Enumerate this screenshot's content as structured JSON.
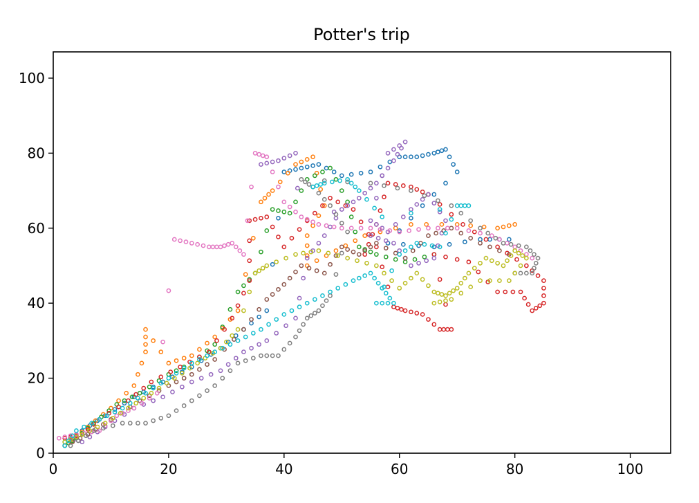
{
  "chart_data": {
    "type": "scatter",
    "title": "Potter's trip",
    "xlabel": "",
    "ylabel": "",
    "xlim": [
      0,
      107
    ],
    "ylim": [
      0,
      107
    ],
    "x_ticks": [
      0,
      20,
      40,
      60,
      80,
      100
    ],
    "y_ticks": [
      0,
      20,
      40,
      60,
      80,
      100
    ],
    "grid": false,
    "marker": "open-circle",
    "series": [
      {
        "color": "#1f77b4",
        "points": [
          [
            2,
            3
          ],
          [
            5,
            6
          ],
          [
            9,
            10
          ],
          [
            14,
            15
          ],
          [
            19,
            19
          ],
          [
            24,
            23
          ],
          [
            29,
            28
          ],
          [
            33,
            33
          ],
          [
            37,
            38
          ],
          [
            40,
            75
          ],
          [
            43,
            76
          ],
          [
            46,
            77
          ],
          [
            50,
            74
          ],
          [
            55,
            75
          ],
          [
            60,
            79
          ],
          [
            63,
            79
          ],
          [
            66,
            80
          ],
          [
            68,
            81
          ],
          [
            70,
            75
          ],
          [
            64,
            66
          ],
          [
            58,
            56
          ],
          [
            66,
            55
          ],
          [
            74,
            57
          ],
          [
            79,
            57
          ]
        ]
      },
      {
        "color": "#ff7f0e",
        "points": [
          [
            3,
            3
          ],
          [
            6,
            7
          ],
          [
            10,
            12
          ],
          [
            14,
            18
          ],
          [
            16,
            27
          ],
          [
            16,
            33
          ],
          [
            20,
            24
          ],
          [
            24,
            26
          ],
          [
            28,
            31
          ],
          [
            32,
            38
          ],
          [
            36,
            67
          ],
          [
            38,
            70
          ],
          [
            42,
            77
          ],
          [
            45,
            79
          ],
          [
            47,
            66
          ],
          [
            44,
            58
          ],
          [
            44,
            50
          ],
          [
            49,
            54
          ],
          [
            54,
            58
          ],
          [
            62,
            61
          ],
          [
            70,
            61
          ],
          [
            77,
            60
          ],
          [
            80,
            61
          ]
        ]
      },
      {
        "color": "#2ca02c",
        "points": [
          [
            2,
            2
          ],
          [
            4,
            4
          ],
          [
            7,
            8
          ],
          [
            11,
            13
          ],
          [
            15,
            16
          ],
          [
            20,
            21
          ],
          [
            24,
            24
          ],
          [
            28,
            29
          ],
          [
            32,
            43
          ],
          [
            35,
            48
          ],
          [
            38,
            65
          ],
          [
            41,
            64
          ],
          [
            44,
            73
          ],
          [
            48,
            76
          ],
          [
            51,
            67
          ],
          [
            53,
            55
          ],
          [
            56,
            53
          ],
          [
            61,
            51
          ],
          [
            66,
            53
          ]
        ]
      },
      {
        "color": "#d62728",
        "points": [
          [
            2,
            4
          ],
          [
            5,
            5
          ],
          [
            8,
            9
          ],
          [
            13,
            14
          ],
          [
            17,
            19
          ],
          [
            22,
            23
          ],
          [
            27,
            27
          ],
          [
            31,
            36
          ],
          [
            34,
            46
          ],
          [
            34,
            62
          ],
          [
            37,
            63
          ],
          [
            40,
            55
          ],
          [
            44,
            62
          ],
          [
            48,
            68
          ],
          [
            52,
            65
          ],
          [
            56,
            55
          ],
          [
            59,
            39
          ],
          [
            61,
            38
          ],
          [
            64,
            37
          ],
          [
            67,
            33
          ],
          [
            69,
            33
          ],
          [
            66,
            53
          ],
          [
            72,
            51
          ],
          [
            77,
            43
          ],
          [
            81,
            43
          ],
          [
            83,
            38
          ],
          [
            85,
            40
          ],
          [
            85,
            46
          ],
          [
            82,
            50
          ],
          [
            77,
            55
          ],
          [
            71,
            61
          ],
          [
            65,
            69
          ],
          [
            62,
            71
          ],
          [
            58,
            72
          ],
          [
            56,
            61
          ],
          [
            54,
            53
          ]
        ]
      },
      {
        "color": "#9467bd",
        "points": [
          [
            3,
            4
          ],
          [
            5,
            3
          ],
          [
            9,
            7
          ],
          [
            14,
            12
          ],
          [
            19,
            15
          ],
          [
            24,
            19
          ],
          [
            29,
            22
          ],
          [
            33,
            27
          ],
          [
            37,
            30
          ],
          [
            42,
            36
          ],
          [
            44,
            52
          ],
          [
            47,
            58
          ],
          [
            50,
            65
          ],
          [
            53,
            68
          ],
          [
            56,
            72
          ],
          [
            59,
            78
          ],
          [
            61,
            83
          ],
          [
            58,
            80
          ],
          [
            55,
            62
          ],
          [
            58,
            59
          ],
          [
            62,
            65
          ],
          [
            65,
            69
          ],
          [
            68,
            62
          ],
          [
            66,
            52
          ],
          [
            62,
            50
          ],
          [
            59,
            56
          ],
          [
            55,
            58
          ],
          [
            36,
            77
          ],
          [
            39,
            78
          ],
          [
            42,
            80
          ]
        ]
      },
      {
        "color": "#8c564b",
        "points": [
          [
            2,
            2
          ],
          [
            6,
            5
          ],
          [
            10,
            9
          ],
          [
            15,
            14
          ],
          [
            20,
            18
          ],
          [
            24,
            21
          ],
          [
            28,
            25
          ],
          [
            33,
            33
          ],
          [
            37,
            41
          ],
          [
            40,
            45
          ],
          [
            43,
            50
          ],
          [
            47,
            48
          ],
          [
            50,
            55
          ],
          [
            53,
            53
          ],
          [
            56,
            56
          ],
          [
            61,
            52
          ],
          [
            65,
            58
          ],
          [
            69,
            60
          ],
          [
            74,
            56
          ],
          [
            79,
            53
          ]
        ]
      },
      {
        "color": "#e377c2",
        "points": [
          [
            1,
            4
          ],
          [
            4,
            5
          ],
          [
            8,
            6
          ],
          [
            11,
            10
          ],
          [
            14,
            12
          ],
          [
            18,
            16
          ],
          [
            21,
            57
          ],
          [
            24,
            56
          ],
          [
            27,
            55
          ],
          [
            29,
            55
          ],
          [
            31,
            56
          ],
          [
            33,
            53
          ],
          [
            35,
            80
          ],
          [
            37,
            79
          ],
          [
            40,
            67
          ],
          [
            43,
            63
          ],
          [
            46,
            61
          ],
          [
            50,
            60
          ],
          [
            55,
            60
          ],
          [
            60,
            59
          ],
          [
            65,
            60
          ],
          [
            70,
            60
          ],
          [
            76,
            58
          ],
          [
            80,
            55
          ],
          [
            83,
            52
          ]
        ]
      },
      {
        "color": "#7f7f7f",
        "points": [
          [
            3,
            2
          ],
          [
            7,
            6
          ],
          [
            12,
            8
          ],
          [
            16,
            8
          ],
          [
            20,
            10
          ],
          [
            24,
            14
          ],
          [
            28,
            18
          ],
          [
            32,
            24
          ],
          [
            36,
            26
          ],
          [
            39,
            26
          ],
          [
            42,
            31
          ],
          [
            44,
            36
          ],
          [
            46,
            38
          ],
          [
            48,
            42
          ],
          [
            51,
            59
          ],
          [
            48,
            66
          ],
          [
            45,
            71
          ],
          [
            43,
            73
          ],
          [
            55,
            72
          ],
          [
            62,
            70
          ],
          [
            69,
            66
          ],
          [
            74,
            60
          ],
          [
            78,
            56
          ],
          [
            82,
            55
          ],
          [
            84,
            52
          ],
          [
            83,
            48
          ],
          [
            80,
            48
          ]
        ]
      },
      {
        "color": "#bcbd22",
        "points": [
          [
            2,
            3
          ],
          [
            5,
            5
          ],
          [
            9,
            8
          ],
          [
            13,
            12
          ],
          [
            17,
            16
          ],
          [
            21,
            20
          ],
          [
            25,
            24
          ],
          [
            29,
            28
          ],
          [
            32,
            33
          ],
          [
            35,
            48
          ],
          [
            37,
            50
          ],
          [
            42,
            53
          ],
          [
            46,
            54
          ],
          [
            51,
            52
          ],
          [
            56,
            50
          ],
          [
            60,
            44
          ],
          [
            63,
            48
          ],
          [
            66,
            43
          ],
          [
            68,
            42
          ],
          [
            70,
            44
          ],
          [
            72,
            48
          ],
          [
            75,
            52
          ],
          [
            78,
            50
          ],
          [
            80,
            54
          ],
          [
            82,
            52
          ],
          [
            79,
            46
          ],
          [
            74,
            46
          ],
          [
            69,
            41
          ],
          [
            66,
            40
          ]
        ]
      },
      {
        "color": "#17becf",
        "points": [
          [
            2,
            2
          ],
          [
            4,
            6
          ],
          [
            8,
            9
          ],
          [
            12,
            12
          ],
          [
            16,
            16
          ],
          [
            20,
            20
          ],
          [
            24,
            24
          ],
          [
            28,
            27
          ],
          [
            32,
            30
          ],
          [
            36,
            33
          ],
          [
            40,
            37
          ],
          [
            44,
            40
          ],
          [
            48,
            43
          ],
          [
            52,
            46
          ],
          [
            55,
            48
          ],
          [
            57,
            44
          ],
          [
            59,
            40
          ],
          [
            56,
            40
          ],
          [
            60,
            53
          ],
          [
            63,
            56
          ],
          [
            67,
            55
          ],
          [
            70,
            66
          ],
          [
            72,
            66
          ],
          [
            57,
            63
          ],
          [
            53,
            70
          ],
          [
            51,
            73
          ],
          [
            47,
            72
          ],
          [
            45,
            71
          ]
        ]
      }
    ]
  }
}
